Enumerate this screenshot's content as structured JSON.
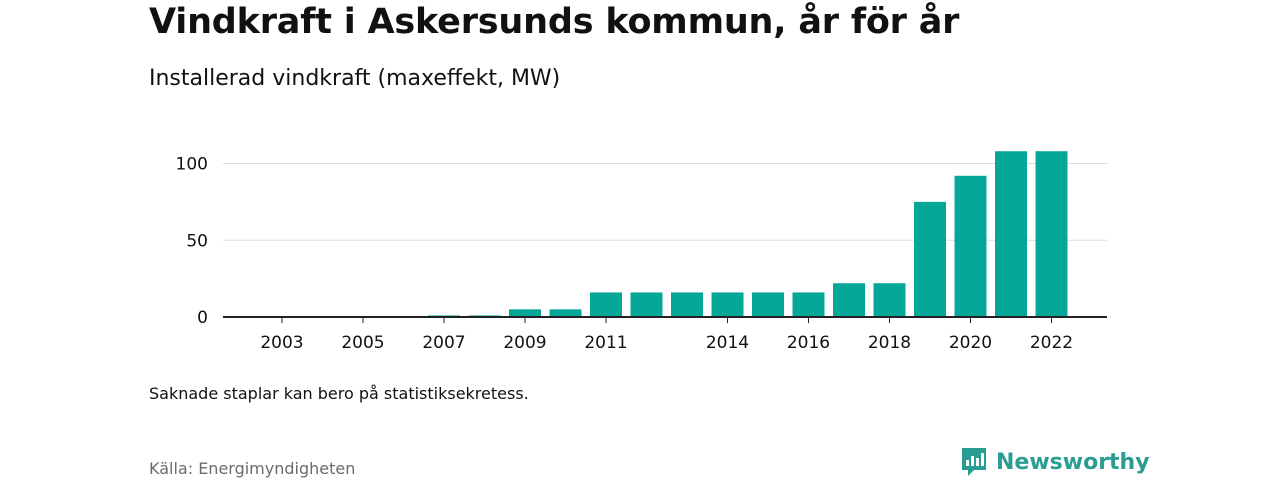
{
  "header": {
    "title": "Vindkraft i Askersunds kommun, år för år",
    "subtitle": "Installerad vindkraft (maxeffekt, MW)"
  },
  "footer": {
    "note": "Saknade staplar kan bero på statistiksekretess.",
    "source": "Källa: Energimyndigheten",
    "brand": "Newsworthy"
  },
  "colors": {
    "bar": "#05a898",
    "brand": "#2a9d93",
    "grid": "#dddddd",
    "axis": "#222222"
  },
  "chart_data": {
    "type": "bar",
    "title": "Vindkraft i Askersunds kommun, år för år",
    "subtitle": "Installerad vindkraft (maxeffekt, MW)",
    "xlabel": "",
    "ylabel": "",
    "categories": [
      "2003",
      "2004",
      "2005",
      "2006",
      "2007",
      "2008",
      "2009",
      "2010",
      "2011",
      "2012",
      "2013",
      "2014",
      "2015",
      "2016",
      "2017",
      "2018",
      "2019",
      "2020",
      "2021",
      "2022"
    ],
    "values": [
      0,
      0,
      0,
      0,
      1,
      1,
      5,
      5,
      16,
      16,
      16,
      16,
      16,
      16,
      22,
      22,
      75,
      92,
      108,
      108
    ],
    "x_tick_labels": [
      "2003",
      "2005",
      "2007",
      "2009",
      "2011",
      "2014",
      "2016",
      "2018",
      "2020",
      "2022"
    ],
    "y_ticks": [
      0,
      50,
      100
    ],
    "ylim": [
      0,
      120
    ],
    "grid": true,
    "legend": "none"
  }
}
